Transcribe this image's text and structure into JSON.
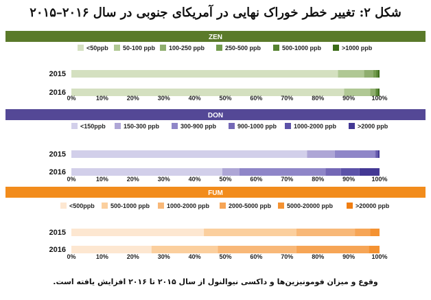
{
  "title": "شکل ۲: تغییر خطر خوراک نهایی در آمریکای جنوبی در سال ۲۰۱۶–۲۰۱۵",
  "footnote": "وقوع و میزان فومونیزین‌ها و داکسی نیوالنول از سال ۲۰۱۵ تا ۲۰۱۶ افزایش یافته است.",
  "chart_data": [
    {
      "type": "bar",
      "stacked": true,
      "orientation": "horizontal",
      "title": "ZEN",
      "header_color": "#5a7a2a",
      "categories": [
        "2015",
        "2016"
      ],
      "series": [
        {
          "name": "<50ppb",
          "color": "#d4e0c0",
          "values": [
            86.5,
            88.5
          ]
        },
        {
          "name": "50-100 ppb",
          "color": "#b0c894",
          "values": [
            8.5,
            8.5
          ]
        },
        {
          "name": "100-250 ppb",
          "color": "#8fae6e",
          "values": [
            3.0,
            1.5
          ]
        },
        {
          "name": "250-500 ppb",
          "color": "#739c4e",
          "values": [
            1.0,
            0.5
          ]
        },
        {
          "name": "500-1000 ppb",
          "color": "#558230",
          "values": [
            0.5,
            0.5
          ]
        },
        {
          "name": ">1000 ppb",
          "color": "#3b6c18",
          "values": [
            0.5,
            0.5
          ]
        }
      ],
      "xticks": [
        "0%",
        "10%",
        "20%",
        "30%",
        "40%",
        "50%",
        "60%",
        "70%",
        "80%",
        "90%",
        "100%"
      ],
      "xlim": [
        0,
        100
      ]
    },
    {
      "type": "bar",
      "stacked": true,
      "orientation": "horizontal",
      "title": "DON",
      "header_color": "#544896",
      "categories": [
        "2015",
        "2016"
      ],
      "series": [
        {
          "name": "<150ppb",
          "color": "#d2cfea",
          "values": [
            76.5,
            49.0
          ]
        },
        {
          "name": "150-300 ppb",
          "color": "#aea6d6",
          "values": [
            9.0,
            5.5
          ]
        },
        {
          "name": "300-900 ppb",
          "color": "#8f86c8",
          "values": [
            13.0,
            28.0
          ]
        },
        {
          "name": "900-1000 ppb",
          "color": "#7468b6",
          "values": [
            0.5,
            5.0
          ]
        },
        {
          "name": "1000-2000 ppb",
          "color": "#5c52a8",
          "values": [
            0.5,
            6.0
          ]
        },
        {
          "name": ">2000 ppb",
          "color": "#433894",
          "values": [
            0.5,
            6.5
          ]
        }
      ],
      "xticks": [
        "0%",
        "10%",
        "20%",
        "30%",
        "40%",
        "50%",
        "60%",
        "70%",
        "80%",
        "90%",
        "100%"
      ],
      "xlim": [
        0,
        100
      ]
    },
    {
      "type": "bar",
      "stacked": true,
      "orientation": "horizontal",
      "title": "FUM",
      "header_color": "#f28c1c",
      "categories": [
        "2015",
        "2016"
      ],
      "series": [
        {
          "name": "<500ppb",
          "color": "#fde7d1",
          "values": [
            43.0,
            26.0
          ]
        },
        {
          "name": "500-1000 ppb",
          "color": "#fbcf9e",
          "values": [
            30.0,
            21.5
          ]
        },
        {
          "name": "1000-2000 ppb",
          "color": "#f8b878",
          "values": [
            19.0,
            25.5
          ]
        },
        {
          "name": "2000-5000 ppb",
          "color": "#f6a556",
          "values": [
            5.0,
            23.5
          ]
        },
        {
          "name": "5000-20000 ppb",
          "color": "#f49232",
          "values": [
            3.0,
            3.5
          ]
        },
        {
          "name": ">20000 ppb",
          "color": "#f07e12",
          "values": [
            0.0,
            0.0
          ]
        }
      ],
      "xticks": [
        "0%",
        "10%",
        "20%",
        "30%",
        "40%",
        "50%",
        "60%",
        "70%",
        "80%",
        "90%",
        "100%"
      ],
      "xlim": [
        0,
        100
      ]
    }
  ]
}
